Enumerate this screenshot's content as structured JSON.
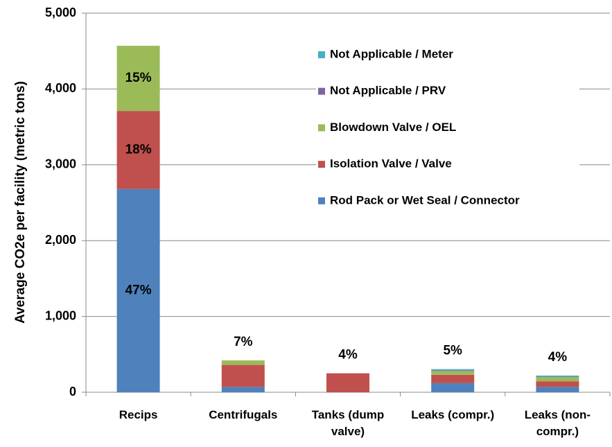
{
  "chart_data": {
    "type": "stacked_bar",
    "y_label": "Average CO2e per facility (metric tons)",
    "categories": [
      [
        "Recips"
      ],
      [
        "Centrifugals"
      ],
      [
        "Tanks (dump",
        "valve)"
      ],
      [
        "Leaks (compr.)"
      ],
      [
        "Leaks (non-",
        "compr.)"
      ]
    ],
    "series": [
      {
        "name": "Rod Pack or Wet Seal / Connector",
        "color": "#4f81bd",
        "values": [
          2680,
          70,
          0,
          120,
          70
        ],
        "segment_labels": [
          "47%",
          null,
          null,
          null,
          null
        ]
      },
      {
        "name": "Isolation Valve / Valve",
        "color": "#c0504d",
        "values": [
          1030,
          290,
          250,
          110,
          75
        ],
        "segment_labels": [
          "18%",
          null,
          null,
          null,
          null
        ]
      },
      {
        "name": "Blowdown Valve / OEL",
        "color": "#9bbb59",
        "values": [
          860,
          60,
          0,
          50,
          55
        ],
        "segment_labels": [
          "15%",
          null,
          null,
          null,
          null
        ]
      },
      {
        "name": "Not Applicable / PRV",
        "color": "#8064a2",
        "values": [
          0,
          0,
          0,
          10,
          5
        ],
        "segment_labels": [
          null,
          null,
          null,
          null,
          null
        ]
      },
      {
        "name": "Not Applicable / Meter",
        "color": "#4bacc6",
        "values": [
          0,
          0,
          0,
          15,
          15
        ],
        "segment_labels": [
          null,
          null,
          null,
          null,
          null
        ]
      }
    ],
    "top_labels": [
      null,
      "7%",
      "4%",
      "5%",
      "4%"
    ],
    "ylim": [
      0,
      5000
    ],
    "yticks": [
      {
        "value": 0,
        "label": "0"
      },
      {
        "value": 1000,
        "label": "1,000"
      },
      {
        "value": 2000,
        "label": "2,000"
      },
      {
        "value": 3000,
        "label": "3,000"
      },
      {
        "value": 4000,
        "label": "4,000"
      },
      {
        "value": 5000,
        "label": "5,000"
      }
    ],
    "grid": true,
    "legend": "upper right"
  }
}
